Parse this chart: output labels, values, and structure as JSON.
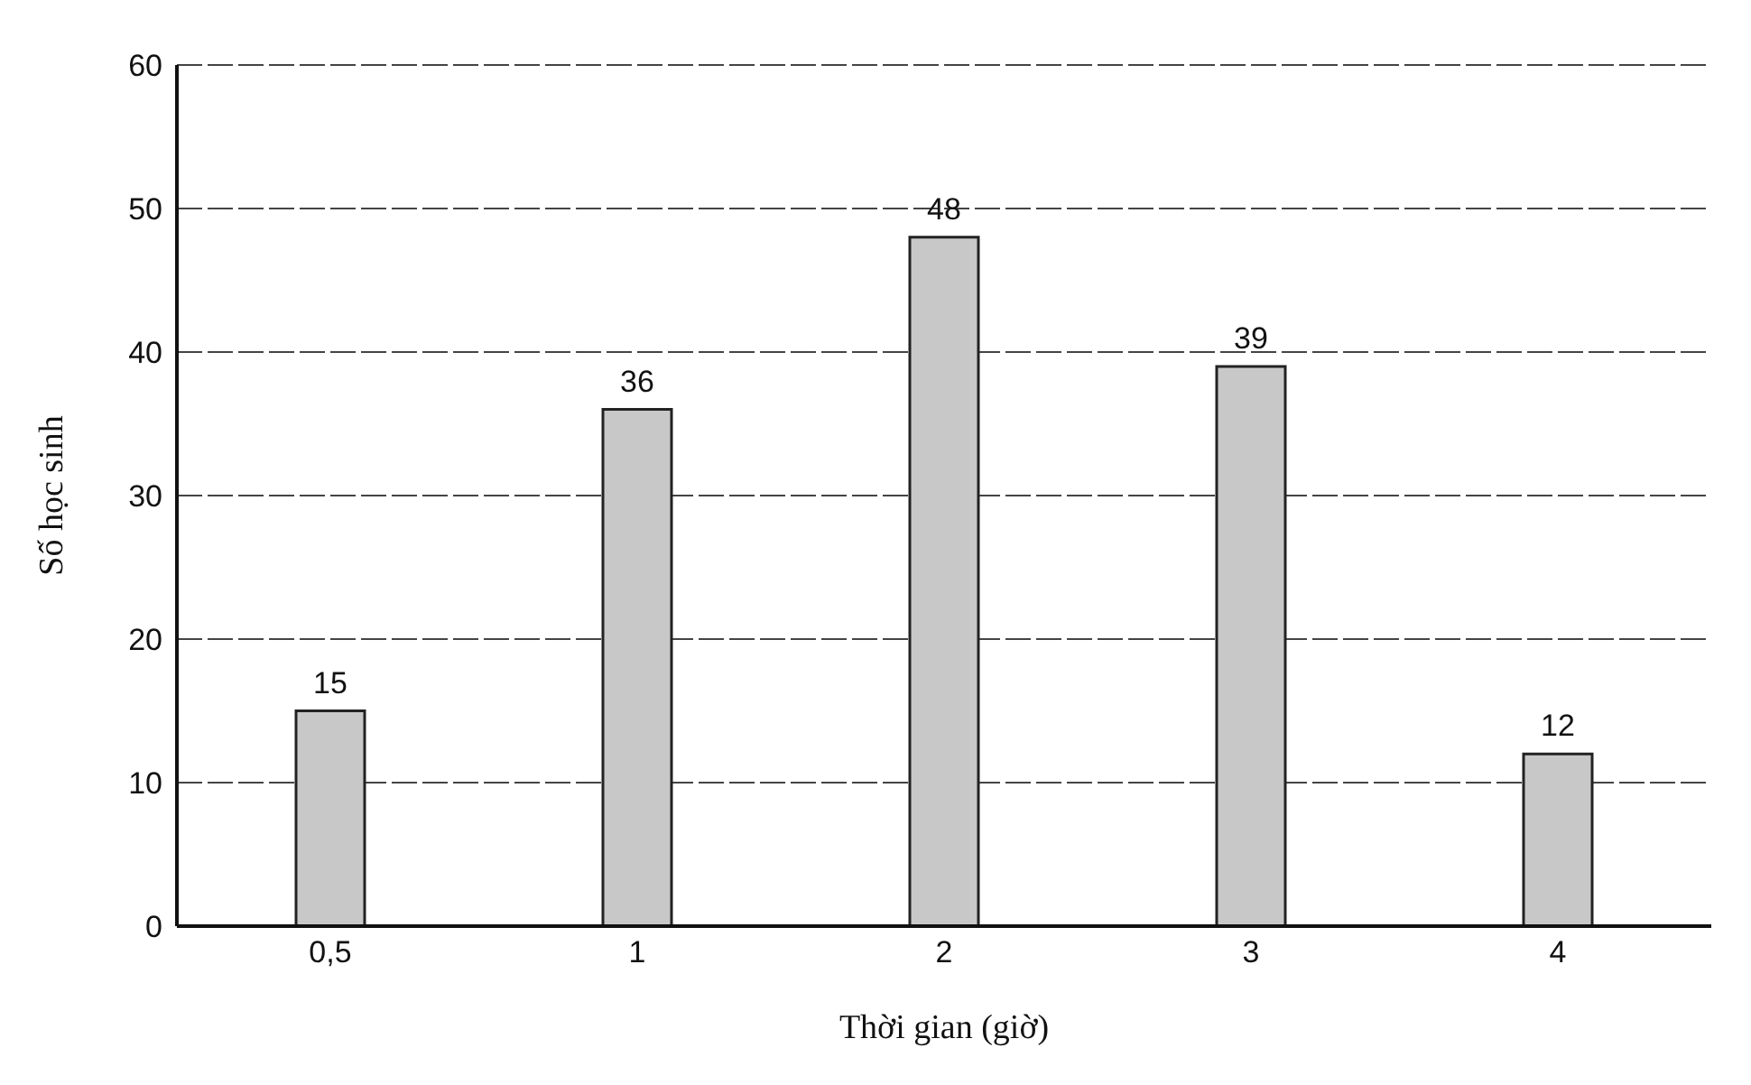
{
  "chart_data": {
    "type": "bar",
    "xlabel": "Thời gian (giờ)",
    "ylabel": "Số học sinh",
    "categories": [
      "0,5",
      "1",
      "2",
      "3",
      "4"
    ],
    "values": [
      15,
      36,
      48,
      39,
      12
    ],
    "color": "#c8c8c8",
    "ylim": [
      0,
      60
    ],
    "yticks": [
      0,
      10,
      20,
      30,
      40,
      50,
      60
    ],
    "grid": "y",
    "data_labels": true
  }
}
